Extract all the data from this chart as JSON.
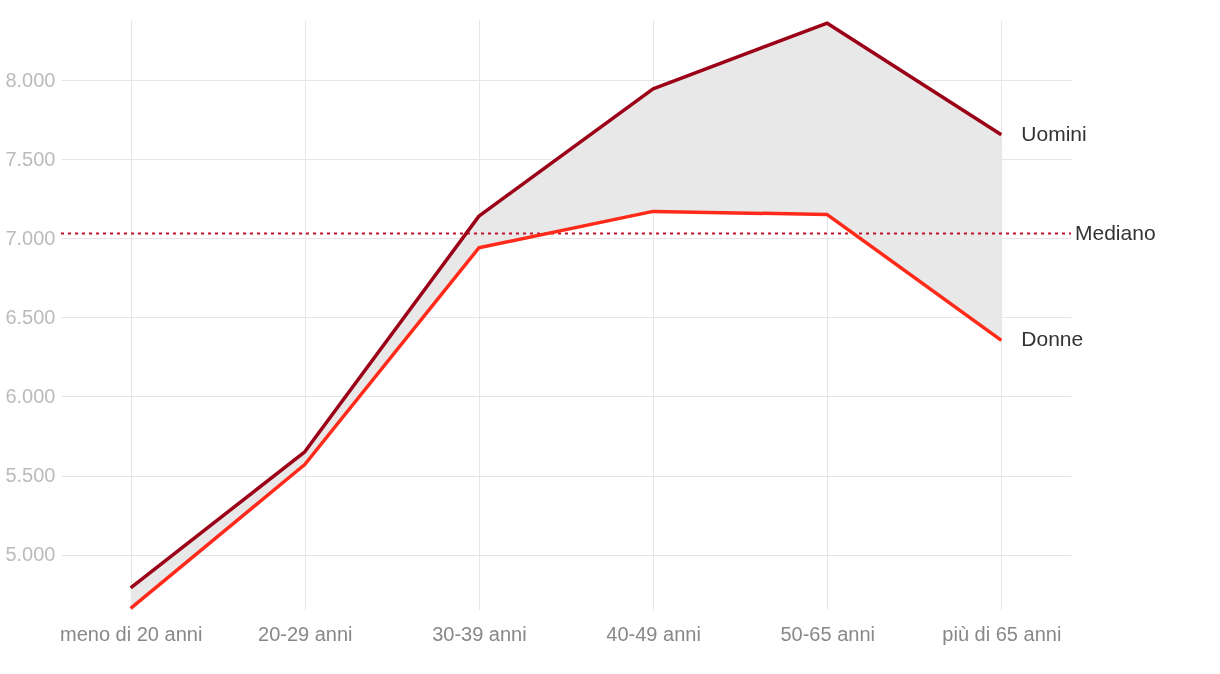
{
  "chart_data": {
    "type": "line",
    "categories": [
      "meno di 20 anni",
      "20-29 anni",
      "30-39 anni",
      "40-49 anni",
      "50-65 anni",
      "più di 65 anni"
    ],
    "series": [
      {
        "name": "Uomini",
        "color": "#9b0016",
        "values": [
          4790,
          5650,
          7140,
          7945,
          8360,
          7655
        ],
        "lower": [
          4660,
          5570,
          6940,
          7170,
          7150,
          6355
        ],
        "upper": [
          4790,
          5650,
          7140,
          7945,
          8360,
          7655
        ]
      },
      {
        "name": "Donne",
        "color": "#ff2a1a",
        "values": [
          4660,
          5570,
          6940,
          7170,
          7150,
          6355
        ]
      }
    ],
    "ref_lines": [
      {
        "axis": "y",
        "value": 7030,
        "label": "Mediano",
        "color": "#c0102a",
        "line_style": "dotted"
      }
    ],
    "ylim": [
      4650,
      8380
    ],
    "yticks": [
      {
        "value": 5000,
        "label": "5.000"
      },
      {
        "value": 5500,
        "label": "5.500"
      },
      {
        "value": 6000,
        "label": "6.000"
      },
      {
        "value": 6500,
        "label": "6.500"
      },
      {
        "value": 7000,
        "label": "7.000"
      },
      {
        "value": 7500,
        "label": "7.500"
      },
      {
        "value": 8000,
        "label": "8.000"
      }
    ],
    "grid": true,
    "legend": false,
    "marker": "none",
    "line_style": "solid"
  }
}
